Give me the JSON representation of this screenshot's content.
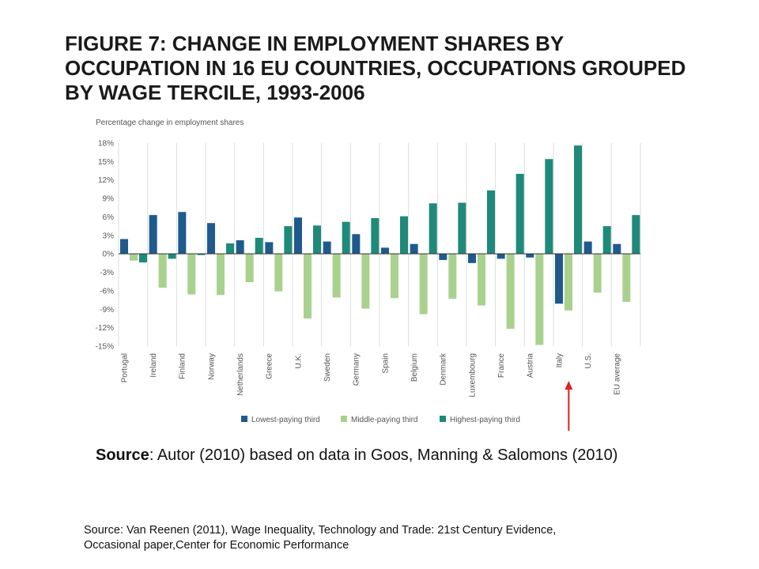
{
  "title_lines": [
    "FIGURE 7: CHANGE IN EMPLOYMENT SHARES BY",
    "OCCUPATION IN 16 EU COUNTRIES, OCCUPATIONS GROUPED",
    "BY WAGE TERCILE, 1993-2006"
  ],
  "source_main": {
    "label": "Source",
    "text": ": Autor (2010) based on data in Goos, Manning & Salomons (2010)"
  },
  "source_footer": [
    "Source: Van Reenen (2011), Wage Inequality, Technology and Trade: 21st Century Evidence,",
    "Occasional paper,Center for Economic Performance"
  ],
  "colors": {
    "lowest": "#1f5a8c",
    "middle": "#a9d18e",
    "highest": "#1f8a7a",
    "arrow": "#e02020",
    "grid": "#dddddd",
    "axis_text": "#555555"
  },
  "annotation": {
    "type": "arrow",
    "points_to": "Italy"
  },
  "chart_data": {
    "type": "bar",
    "ylabel": "Percentage change in employment shares",
    "ylim": [
      -15,
      18
    ],
    "yticks": [
      18,
      15,
      12,
      9,
      6,
      3,
      0,
      -3,
      -6,
      -9,
      -12,
      -15
    ],
    "tick_suffix": "%",
    "legend_position": "bottom",
    "grid": "vertical",
    "categories": [
      "Portugal",
      "Ireland",
      "Finland",
      "Norway",
      "Netherlands",
      "Greece",
      "U.K.",
      "Sweden",
      "Germany",
      "Spain",
      "Belgium",
      "Denmark",
      "Luxembourg",
      "France",
      "Austria",
      "Italy",
      "U.S.",
      "EU average"
    ],
    "series": [
      {
        "name": "Lowest-paying third",
        "key": "lowest",
        "values": [
          2.4,
          6.3,
          6.8,
          5.0,
          2.2,
          1.9,
          5.9,
          2.0,
          3.2,
          1.0,
          1.6,
          -1.0,
          -1.5,
          -0.8,
          -0.6,
          -8.1,
          2.0,
          1.6
        ]
      },
      {
        "name": "Middle-paying third",
        "key": "middle",
        "values": [
          -1.1,
          -5.5,
          -6.6,
          -6.7,
          -4.6,
          -6.1,
          -10.5,
          -7.1,
          -8.9,
          -7.2,
          -9.8,
          -7.3,
          -8.4,
          -12.2,
          -14.8,
          -9.2,
          -6.3,
          -7.8
        ]
      },
      {
        "name": "Highest-paying third",
        "key": "highest",
        "values": [
          -1.4,
          -0.8,
          -0.2,
          1.7,
          2.6,
          4.5,
          4.6,
          5.2,
          5.8,
          6.1,
          8.2,
          8.3,
          10.3,
          13.0,
          15.4,
          17.6,
          4.5,
          6.3
        ]
      }
    ]
  }
}
